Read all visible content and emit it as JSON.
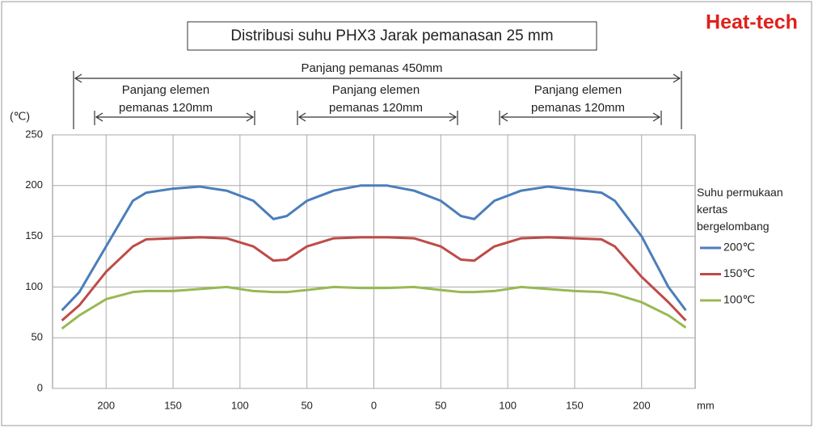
{
  "chart_data": {
    "type": "line",
    "title": "Distribusi suhu PHX3 Jarak pemanasan 25 mm",
    "logo": "Heat-tech",
    "y_label": "(℃)",
    "x_unit": "mm",
    "annotations": [
      {
        "lines": [
          "Panjang pemanas 450mm"
        ]
      },
      {
        "lines": [
          "Panjang elemen",
          "pemanas 120mm"
        ]
      },
      {
        "lines": [
          "Panjang elemen",
          "pemanas 120mm"
        ]
      },
      {
        "lines": [
          "Panjang elemen",
          "pemanas 120mm"
        ]
      }
    ],
    "legend_title": "Suhu permukaan kertas bergelombang",
    "x": [
      -233,
      -220,
      -200,
      -180,
      -170,
      -150,
      -130,
      -110,
      -90,
      -75,
      -65,
      -50,
      -30,
      -10,
      10,
      30,
      50,
      65,
      75,
      90,
      110,
      130,
      150,
      170,
      180,
      200,
      220,
      233
    ],
    "series": [
      {
        "name": "200℃",
        "color": "#4a7ebb",
        "values": [
          77,
          95,
          140,
          185,
          193,
          197,
          199,
          195,
          185,
          167,
          170,
          185,
          195,
          200,
          200,
          195,
          185,
          170,
          167,
          185,
          195,
          199,
          196,
          193,
          185,
          150,
          100,
          77
        ]
      },
      {
        "name": "150℃",
        "color": "#be4b48",
        "values": [
          67,
          82,
          115,
          140,
          147,
          148,
          149,
          148,
          140,
          126,
          127,
          140,
          148,
          149,
          149,
          148,
          140,
          127,
          126,
          140,
          148,
          149,
          148,
          147,
          140,
          110,
          85,
          67
        ]
      },
      {
        "name": "100℃",
        "color": "#98b954",
        "values": [
          59,
          72,
          88,
          95,
          96,
          96,
          98,
          100,
          96,
          95,
          95,
          97,
          100,
          99,
          99,
          100,
          97,
          95,
          95,
          96,
          100,
          98,
          96,
          95,
          93,
          85,
          72,
          60
        ]
      }
    ],
    "xlim": [
      -240,
      240
    ],
    "xticks": [
      {
        "value": -200,
        "label": "200"
      },
      {
        "value": -150,
        "label": "150"
      },
      {
        "value": -100,
        "label": "100"
      },
      {
        "value": -50,
        "label": "50"
      },
      0,
      50,
      100,
      150,
      200
    ],
    "ylim": [
      0,
      250
    ],
    "yticks": [
      0,
      50,
      100,
      150,
      200,
      250
    ],
    "grid": true,
    "legend": "right"
  }
}
